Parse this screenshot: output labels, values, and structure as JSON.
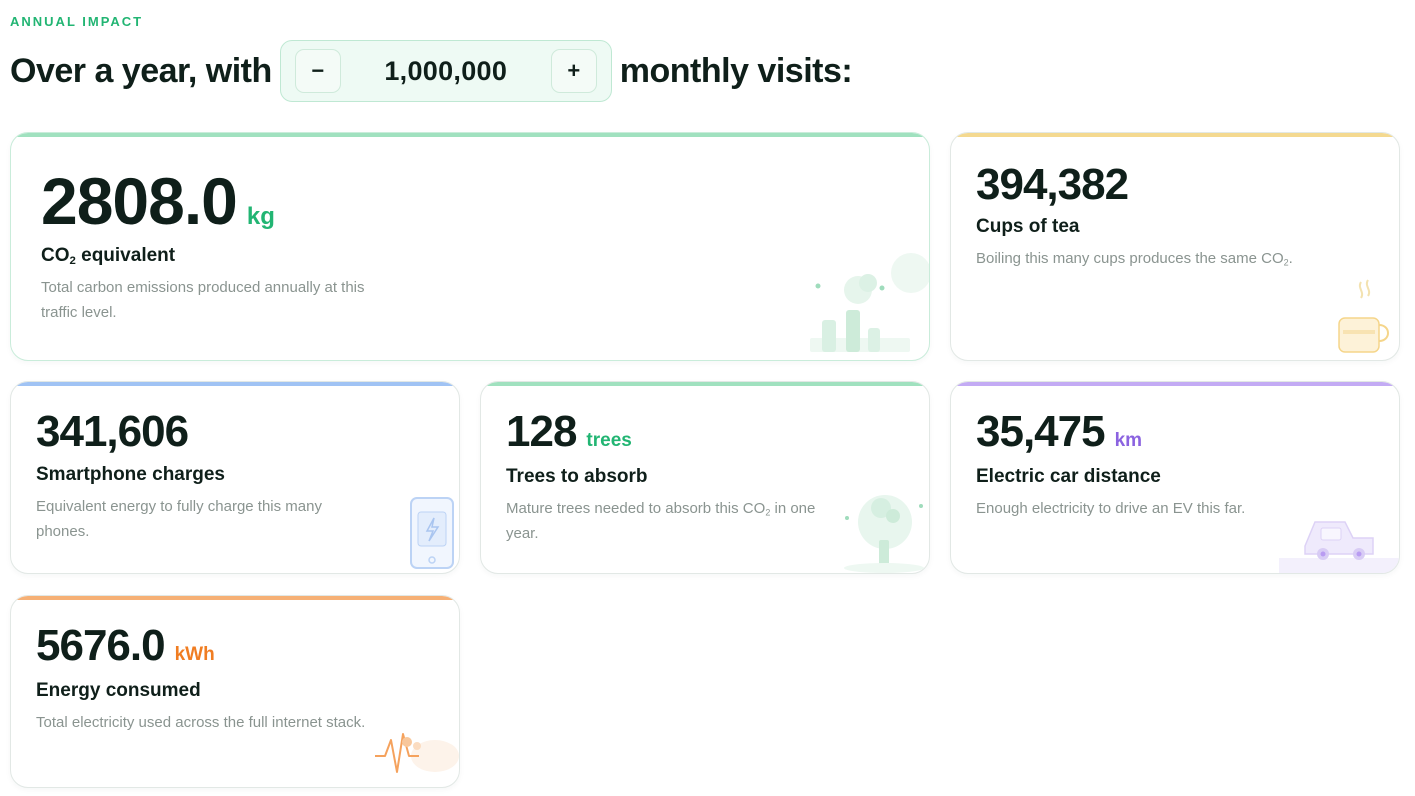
{
  "eyebrow": "ANNUAL IMPACT",
  "headline": {
    "prefix": "Over a year, with",
    "suffix": "monthly visits:",
    "decrement_label": "−",
    "increment_label": "+",
    "visits_value": "1,000,000"
  },
  "colors": {
    "green": "#22b573",
    "yellow": "#f2d27c",
    "blue": "#8fb8f2",
    "purple": "#b99cf2",
    "orange": "#f5a25d"
  },
  "cards": {
    "co2": {
      "value": "2808.0",
      "unit": "kg",
      "title_prefix": "CO",
      "title_sub": "2",
      "title_suffix": " equivalent",
      "desc": "Total carbon emissions produced annually at this traffic level.",
      "icon": "factory-icon"
    },
    "tea": {
      "value": "394,382",
      "title": "Cups of tea",
      "desc_prefix": "Boiling this many cups produces the same CO",
      "desc_sub": "2",
      "desc_suffix": ".",
      "icon": "tea-cup-icon"
    },
    "phone": {
      "value": "341,606",
      "title": "Smartphone charges",
      "desc": "Equivalent energy to fully charge this many phones.",
      "icon": "phone-battery-icon"
    },
    "trees": {
      "value": "128",
      "unit": "trees",
      "title": "Trees to absorb",
      "desc_prefix": "Mature trees needed to absorb this CO",
      "desc_sub": "2",
      "desc_suffix": " in one year.",
      "icon": "tree-icon"
    },
    "car": {
      "value": "35,475",
      "unit": "km",
      "title": "Electric car distance",
      "desc": "Enough electricity to drive an EV this far.",
      "icon": "electric-car-icon"
    },
    "energy": {
      "value": "5676.0",
      "unit": "kWh",
      "title": "Energy consumed",
      "desc": "Total electricity used across the full internet stack.",
      "icon": "energy-pulse-icon"
    }
  }
}
